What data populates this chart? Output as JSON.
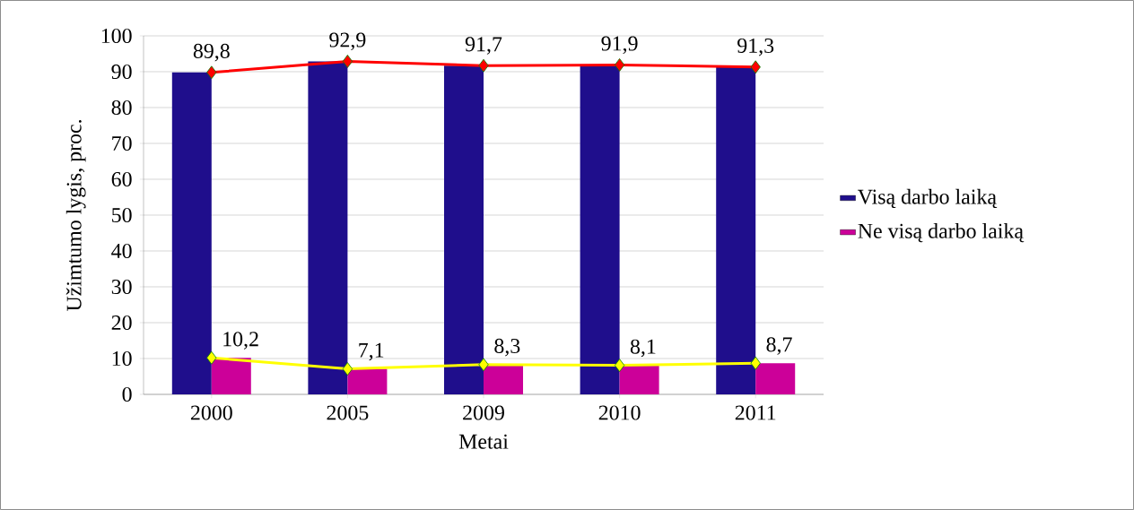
{
  "chart_data": {
    "type": "bar",
    "xlabel": "Metai",
    "ylabel": "Užimtumo lygis, proc.",
    "categories": [
      "2000",
      "2005",
      "2009",
      "2010",
      "2011"
    ],
    "series": [
      {
        "name": "Visą darbo laiką",
        "color": "#1f0e8c",
        "values": [
          89.8,
          92.9,
          91.7,
          91.9,
          91.3
        ]
      },
      {
        "name": "Ne visą darbo laiką",
        "color": "#cc0099",
        "values": [
          10.2,
          7.1,
          8.3,
          8.1,
          8.7
        ]
      },
      {
        "type": "line",
        "color": "#ff0000",
        "values": [
          89.8,
          92.9,
          91.7,
          91.9,
          91.3
        ],
        "value_labels": [
          "89,8",
          "92,9",
          "91,7",
          "91,9",
          "91,3"
        ]
      },
      {
        "type": "line",
        "color": "#ffff00",
        "values": [
          10.2,
          7.1,
          8.3,
          8.1,
          8.7
        ],
        "value_labels": [
          "10,2",
          "7,1",
          "8,3",
          "8,1",
          "8,7"
        ]
      }
    ],
    "ylim": [
      0,
      100
    ],
    "yticks": [
      0,
      10,
      20,
      30,
      40,
      50,
      60,
      70,
      80,
      90,
      100
    ],
    "grid": "y",
    "legend": "right",
    "marker": "diamond"
  }
}
